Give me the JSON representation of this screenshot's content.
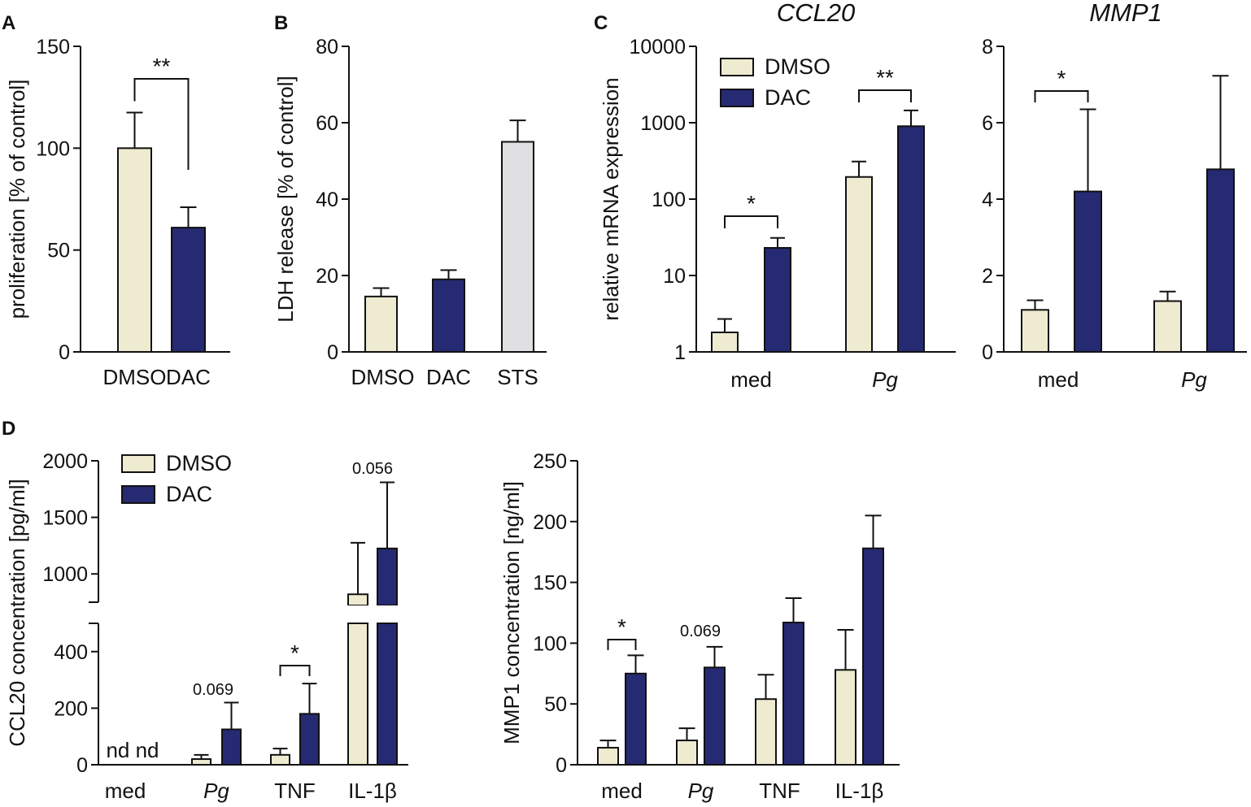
{
  "colors": {
    "DMSO": "#efebd0",
    "DAC": "#262a72",
    "STS": "#e0e0e2"
  },
  "legend": {
    "DMSO": "DMSO",
    "DAC": "DAC"
  },
  "panels": {
    "A": "A",
    "B": "B",
    "C": "C",
    "D": "D"
  },
  "chart_data": [
    {
      "id": "A",
      "type": "bar",
      "title": "",
      "ylabel": "proliferation [% of control]",
      "ylim": [
        0,
        150
      ],
      "yticks": [
        0,
        50,
        100,
        150
      ],
      "yticklabels": [
        "0",
        "50",
        "100",
        "150"
      ],
      "categories": [
        "DMSO",
        "DAC"
      ],
      "colorKeys": [
        "DMSO",
        "DAC"
      ],
      "values": [
        100,
        61
      ],
      "errors": [
        17.5,
        10
      ],
      "significance": [
        {
          "between": [
            0,
            1
          ],
          "label": "**"
        }
      ]
    },
    {
      "id": "B",
      "type": "bar",
      "title": "",
      "ylabel": "LDH release [% of control]",
      "ylim": [
        0,
        80
      ],
      "yticks": [
        0,
        20,
        40,
        60,
        80
      ],
      "yticklabels": [
        "0",
        "20",
        "40",
        "60",
        "80"
      ],
      "categories": [
        "DMSO",
        "DAC",
        "STS"
      ],
      "colorKeys": [
        "DMSO",
        "DAC",
        "STS"
      ],
      "values": [
        14.5,
        19,
        55
      ],
      "errors": [
        2.2,
        2.4,
        5.6
      ]
    },
    {
      "id": "C-CCL20",
      "type": "bar",
      "title": "CCL20",
      "yscale": "log",
      "ylabel": "relative mRNA expression",
      "ylim": [
        1,
        10000
      ],
      "yticks": [
        1,
        10,
        100,
        1000,
        10000
      ],
      "yticklabels": [
        "1",
        "10",
        "100",
        "1000",
        "10000"
      ],
      "categories": [
        "med",
        "Pg"
      ],
      "categoryItalic": [
        false,
        true
      ],
      "series": [
        {
          "name": "DMSO",
          "values": [
            1.8,
            195
          ],
          "errorTops": [
            2.7,
            310
          ]
        },
        {
          "name": "DAC",
          "values": [
            23,
            900
          ],
          "errorTops": [
            31,
            1450
          ]
        }
      ],
      "significance": [
        {
          "group": 0,
          "label": "*"
        },
        {
          "group": 1,
          "label": "**"
        }
      ],
      "legend": "top-left"
    },
    {
      "id": "C-MMP1",
      "type": "bar",
      "title": "MMP1",
      "ylabel": "",
      "ylim": [
        0,
        8
      ],
      "yticks": [
        0,
        2,
        4,
        6,
        8
      ],
      "yticklabels": [
        "0",
        "2",
        "4",
        "6",
        "8"
      ],
      "categories": [
        "med",
        "Pg"
      ],
      "categoryItalic": [
        false,
        true
      ],
      "series": [
        {
          "name": "DMSO",
          "values": [
            1.1,
            1.33
          ],
          "errors": [
            0.25,
            0.25
          ]
        },
        {
          "name": "DAC",
          "values": [
            4.2,
            4.78
          ],
          "errors": [
            2.15,
            2.45
          ]
        }
      ],
      "significance": [
        {
          "group": 0,
          "label": "*"
        }
      ]
    },
    {
      "id": "D-CCL20",
      "type": "bar",
      "title": "",
      "ylabel": "CCL20 concentration [pg/ml]",
      "ylim": [
        0,
        2000
      ],
      "axisBreak": [
        500,
        750
      ],
      "yticks": [
        0,
        200,
        400,
        1000,
        1500,
        2000
      ],
      "yticklabels": [
        "0",
        "200",
        "400",
        "1000",
        "1500",
        "2000"
      ],
      "categories": [
        "med",
        "Pg",
        "TNF",
        "IL-1β"
      ],
      "categoryItalic": [
        false,
        true,
        false,
        false
      ],
      "series": [
        {
          "name": "DMSO",
          "values": [
            null,
            20,
            35,
            820
          ],
          "errorTops": [
            null,
            35,
            57,
            1275
          ]
        },
        {
          "name": "DAC",
          "values": [
            null,
            125,
            180,
            1225
          ],
          "errorTops": [
            null,
            220,
            287,
            1810
          ]
        }
      ],
      "notDetected": [
        {
          "group": 0,
          "label": "nd nd"
        }
      ],
      "annotations": [
        {
          "group": 1,
          "label": "0.069"
        },
        {
          "group": 3,
          "label": "0.056"
        }
      ],
      "significance": [
        {
          "group": 2,
          "label": "*"
        }
      ],
      "legend": "top-left"
    },
    {
      "id": "D-MMP1",
      "type": "bar",
      "title": "",
      "ylabel": "MMP1 concentration [ng/ml]",
      "ylim": [
        0,
        250
      ],
      "yticks": [
        0,
        50,
        100,
        150,
        200,
        250
      ],
      "yticklabels": [
        "0",
        "50",
        "100",
        "150",
        "200",
        "250"
      ],
      "categories": [
        "med",
        "Pg",
        "TNF",
        "IL-1β"
      ],
      "categoryItalic": [
        false,
        true,
        false,
        false
      ],
      "series": [
        {
          "name": "DMSO",
          "values": [
            14,
            20,
            54,
            78
          ],
          "errors": [
            6,
            10,
            20,
            33
          ]
        },
        {
          "name": "DAC",
          "values": [
            75,
            80,
            117,
            178
          ],
          "errors": [
            15,
            17,
            20,
            27
          ]
        }
      ],
      "annotations": [
        {
          "group": 1,
          "label": "0.069"
        }
      ],
      "significance": [
        {
          "group": 0,
          "label": "*"
        }
      ]
    }
  ]
}
